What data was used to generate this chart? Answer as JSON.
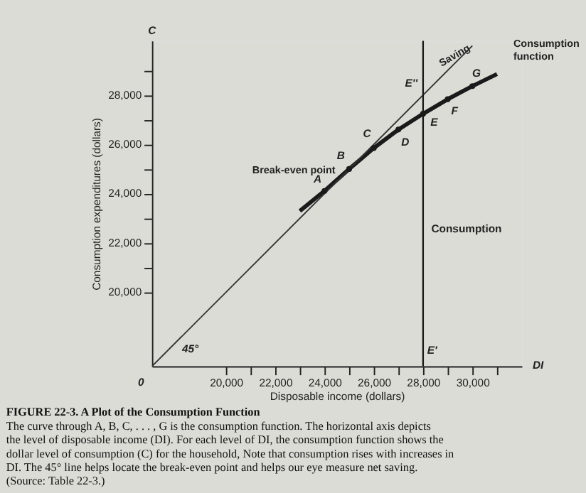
{
  "chart_data": {
    "type": "line",
    "title": "FIGURE 22-3. A Plot of the Consumption Function",
    "xlabel": "Disposable income (dollars)",
    "ylabel": "Consumption expenditures (dollars)",
    "series": [
      {
        "color": "#1a1a1a",
        "x": [
          23000,
          24000,
          25000,
          26000,
          27000,
          28000,
          29000,
          30000,
          31000
        ],
        "values": [
          23300,
          24110,
          25000,
          25850,
          26600,
          27240,
          27830,
          28360,
          28850
        ]
      },
      {
        "color": "#333333",
        "x": [
          17000,
          30000
        ],
        "values": [
          17000,
          30000
        ]
      },
      {
        "type": "scatter",
        "color": "#1a1a1a",
        "marker": "circle",
        "x": [
          24000,
          25000,
          26000,
          27000,
          28000,
          29000,
          30000
        ],
        "values": [
          24110,
          25000,
          25850,
          26600,
          27240,
          27830,
          28360
        ]
      }
    ],
    "xlim": [
      17000,
      32000
    ],
    "ylim": [
      17000,
      30200
    ],
    "xticks": [
      {
        "value": 20000,
        "label": "20,000"
      },
      {
        "value": 21000,
        "label": null
      },
      {
        "value": 22000,
        "label": "22,000"
      },
      {
        "value": 23000,
        "label": null
      },
      {
        "value": 24000,
        "label": "24,000"
      },
      {
        "value": 25000,
        "label": null
      },
      {
        "value": 26000,
        "label": "26,000"
      },
      {
        "value": 27000,
        "label": null
      },
      {
        "value": 28000,
        "label": "28,000"
      },
      {
        "value": 29000,
        "label": null
      },
      {
        "value": 30000,
        "label": "30,000"
      },
      {
        "value": 31000,
        "label": null
      }
    ],
    "yticks": [
      {
        "value": 20000,
        "label": "20,000"
      },
      {
        "value": 21000,
        "label": null
      },
      {
        "value": 22000,
        "label": "22,000"
      },
      {
        "value": 23000,
        "label": null
      },
      {
        "value": 24000,
        "label": "24,000"
      },
      {
        "value": 25000,
        "label": null
      },
      {
        "value": 26000,
        "label": "26,000"
      },
      {
        "value": 27000,
        "label": null
      },
      {
        "value": 28000,
        "label": "28,000"
      },
      {
        "value": 29000,
        "label": null
      }
    ],
    "ref_lines": [
      {
        "axis": "x",
        "value": 28000,
        "label": "Consumption",
        "color": "#1a1a1a"
      }
    ],
    "annotations": [
      {
        "text": "A",
        "x": 24000,
        "y": 24110
      },
      {
        "text": "B",
        "x": 25000,
        "y": 25000
      },
      {
        "text": "C",
        "x": 26000,
        "y": 25850
      },
      {
        "text": "D",
        "x": 27000,
        "y": 26600
      },
      {
        "text": "E",
        "x": 28000,
        "y": 27240
      },
      {
        "text": "F",
        "x": 29000,
        "y": 27830
      },
      {
        "text": "G",
        "x": 30000,
        "y": 28360
      },
      {
        "text": "E''",
        "x": 28000,
        "y": 28000
      },
      {
        "text": "E'",
        "x": 28000,
        "y": 18000
      },
      {
        "text": "Saving",
        "x": 28700,
        "y": 28350
      },
      {
        "text": "Break-even point",
        "x": 25000,
        "y": 25000
      },
      {
        "text": "Consumption function",
        "x": 31000,
        "y": 28850
      },
      "C",
      "DI",
      "0",
      "45°",
      "The curve through A, B, C, . . . , G is the consumption function. The horizontal axis depicts the level of disposable income (DI). For each level of DI, the consumption function shows the dollar level of consumption (C) for the household, Note that consumption rises with increases in DI. The 45° line helps locate the break-even point and helps our eye measure net saving. (Source: Table 22-3.)"
    ],
    "grid": false,
    "line_style": "solid"
  }
}
